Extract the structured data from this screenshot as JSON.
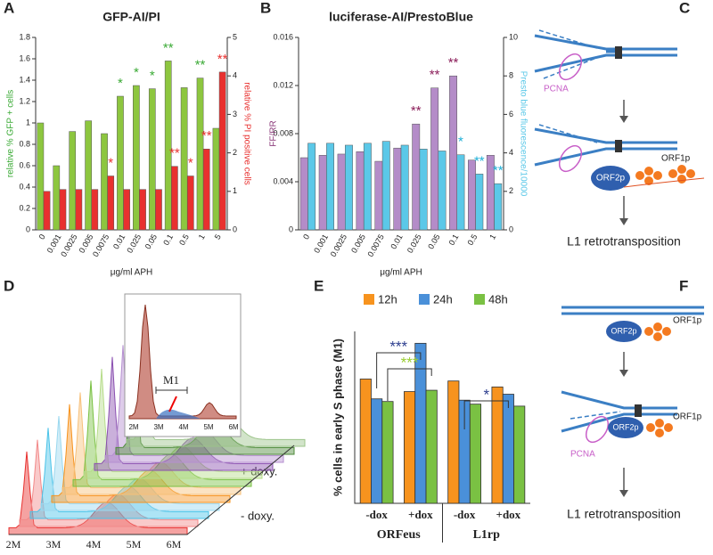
{
  "panels": [
    "A",
    "B",
    "C",
    "D",
    "E",
    "F"
  ],
  "chart_data": [
    {
      "type": "bar",
      "title": "GFP-AI/PI",
      "xlabel": "μg/ml APH",
      "ylabel": "relative % GFP + cells",
      "y2label": "relative % PI positive cells",
      "categories": [
        "0",
        "0.001",
        "0.0025",
        "0.005",
        "0.0075",
        "0.01",
        "0.025",
        "0.05",
        "0.1",
        "0.5",
        "1",
        "5"
      ],
      "ylim": [
        0,
        1.8
      ],
      "yticks": [
        0,
        0.2,
        0.4,
        0.6,
        0.8,
        1,
        1.2,
        1.4,
        1.6,
        1.8
      ],
      "y2lim": [
        0,
        5
      ],
      "y2ticks": [
        0,
        1,
        2,
        3,
        4,
        5
      ],
      "series": [
        {
          "name": "relative % GFP + cells",
          "color": "#8dc63f",
          "values": [
            1.0,
            0.6,
            0.92,
            1.02,
            0.9,
            1.25,
            1.35,
            1.32,
            1.58,
            1.33,
            1.42,
            0.95
          ],
          "annotations": [
            null,
            null,
            null,
            null,
            null,
            "*",
            "*",
            "*",
            "**",
            null,
            "**",
            null
          ],
          "annotation_color": "#3aaa35"
        },
        {
          "name": "relative % PI positive cells",
          "color": "#e8312f",
          "axis": "y2",
          "values": [
            1.0,
            1.05,
            1.05,
            1.05,
            1.4,
            1.05,
            1.05,
            1.05,
            1.65,
            1.4,
            2.1,
            4.1
          ],
          "annotations": [
            null,
            null,
            null,
            null,
            "*",
            null,
            null,
            null,
            "**",
            "*",
            "**",
            "**"
          ],
          "annotation_color": "#e8312f"
        }
      ]
    },
    {
      "type": "bar",
      "title": "luciferase-AI/PrestoBlue",
      "xlabel": "μg/ml APH",
      "ylabel": "FF/RR",
      "y2label": "Presto blue fluorescence/10000",
      "categories": [
        "0",
        "0.001",
        "0.0025",
        "0.005",
        "0.0075",
        "0.01",
        "0.025",
        "0.05",
        "0.1",
        "0.5",
        "1"
      ],
      "ylim": [
        0,
        0.016
      ],
      "yticks": [
        0,
        0.004,
        0.008,
        0.012,
        0.016
      ],
      "y2lim": [
        0,
        10
      ],
      "y2ticks": [
        0,
        2,
        4,
        6,
        8,
        10
      ],
      "series": [
        {
          "name": "FF/RR",
          "color": "#b48cc8",
          "values": [
            0.006,
            0.0062,
            0.0063,
            0.0065,
            0.0057,
            0.0068,
            0.0088,
            0.0118,
            0.0128,
            0.0058,
            0.0062
          ],
          "annotations": [
            null,
            null,
            null,
            null,
            null,
            null,
            "**",
            "**",
            "**",
            null,
            null
          ],
          "annotation_color": "#8b1e5a"
        },
        {
          "name": "Presto blue fluorescence/10000",
          "color": "#5bc8e8",
          "axis": "y2",
          "values": [
            4.5,
            4.5,
            4.4,
            4.5,
            4.6,
            4.4,
            4.2,
            4.1,
            3.9,
            2.9,
            2.4
          ],
          "annotations": [
            null,
            null,
            null,
            null,
            null,
            null,
            null,
            null,
            "*",
            "**",
            "**"
          ],
          "annotation_color": "#1fb0d8"
        }
      ]
    },
    {
      "type": "grouped_bar",
      "ylabel": "% cells in early S phase (M1)",
      "ylim": [
        0,
        26
      ],
      "categories": [
        "-dox",
        "+dox",
        "-dox",
        "+dox"
      ],
      "groups": [
        "ORFeus",
        "L1rp"
      ],
      "series": [
        {
          "name": "12h",
          "color": "#f7931e",
          "values": [
            18.8,
            16.9,
            18.5,
            17.6
          ]
        },
        {
          "name": "24h",
          "color": "#4a90d9",
          "values": [
            15.8,
            24.2,
            15.6,
            16.5
          ]
        },
        {
          "name": "48h",
          "color": "#7ac143",
          "values": [
            15.4,
            17.1,
            15.0,
            14.7
          ]
        }
      ],
      "comparisons": [
        {
          "text": "***",
          "color": "#2e3f8f"
        },
        {
          "text": "***",
          "color": "#9acd32"
        },
        {
          "text": "*",
          "color": "#2e3f8f"
        }
      ]
    }
  ],
  "diagram_c": {
    "pcna": "PCNA",
    "orf2": "ORF2p",
    "orf1": "ORF1p",
    "outcome": "L1 retrotransposition"
  },
  "flow_d": {
    "gate": "M1",
    "xticks": [
      "2M",
      "3M",
      "4M",
      "5M",
      "6M"
    ],
    "inset_xticks": [
      "2M",
      "3M",
      "4M",
      "5M",
      "6M"
    ],
    "plus": "+ doxy.",
    "minus": "- doxy."
  },
  "diagram_f": {
    "orf2_top": "ORF2p",
    "orf1_top": "ORF1p",
    "pcna": "PCNA",
    "orf2": "ORF2p",
    "orf1": "ORF1p",
    "outcome": "L1 retrotransposition"
  }
}
